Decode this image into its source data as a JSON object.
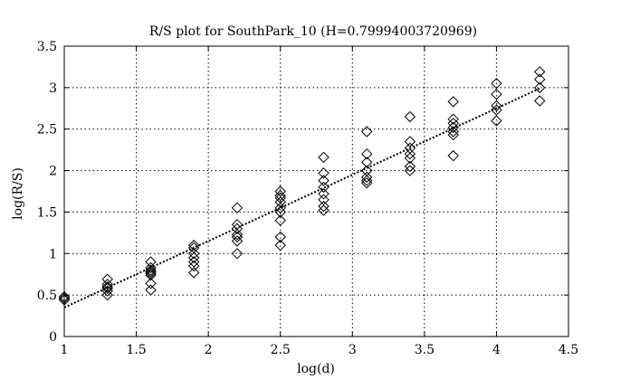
{
  "chart_data": {
    "type": "scatter",
    "title": "R/S plot for SouthPark_10 (H=0.79994003720969)",
    "xlabel": "log(d)",
    "ylabel": "log(R/S)",
    "xlim": [
      1,
      4.5
    ],
    "ylim": [
      0,
      3.5
    ],
    "xticks": [
      1,
      1.5,
      2,
      2.5,
      3,
      3.5,
      4,
      4.5
    ],
    "xtick_labels": [
      "1",
      "1.5",
      "2",
      "2.5",
      "3",
      "3.5",
      "4",
      "4.5"
    ],
    "yticks": [
      0,
      0.5,
      1,
      1.5,
      2,
      2.5,
      3,
      3.5
    ],
    "ytick_labels": [
      "0",
      "0.5",
      "1",
      "1.5",
      "2",
      "2.5",
      "3",
      "3.5"
    ],
    "grid": true,
    "marker": "diamond",
    "points": [
      [
        1.0,
        0.44
      ],
      [
        1.0,
        0.46
      ],
      [
        1.0,
        0.48
      ],
      [
        1.3,
        0.5
      ],
      [
        1.3,
        0.55
      ],
      [
        1.3,
        0.58
      ],
      [
        1.3,
        0.6
      ],
      [
        1.3,
        0.63
      ],
      [
        1.3,
        0.69
      ],
      [
        1.6,
        0.56
      ],
      [
        1.6,
        0.64
      ],
      [
        1.6,
        0.74
      ],
      [
        1.6,
        0.76
      ],
      [
        1.6,
        0.78
      ],
      [
        1.6,
        0.8
      ],
      [
        1.6,
        0.83
      ],
      [
        1.6,
        0.9
      ],
      [
        1.9,
        0.77
      ],
      [
        1.9,
        0.85
      ],
      [
        1.9,
        0.9
      ],
      [
        1.9,
        0.95
      ],
      [
        1.9,
        1.0
      ],
      [
        1.9,
        1.07
      ],
      [
        1.9,
        1.1
      ],
      [
        2.2,
        1.0
      ],
      [
        2.2,
        1.15
      ],
      [
        2.2,
        1.2
      ],
      [
        2.2,
        1.23
      ],
      [
        2.2,
        1.3
      ],
      [
        2.2,
        1.35
      ],
      [
        2.2,
        1.55
      ],
      [
        2.5,
        1.1
      ],
      [
        2.5,
        1.2
      ],
      [
        2.5,
        1.4
      ],
      [
        2.5,
        1.5
      ],
      [
        2.5,
        1.55
      ],
      [
        2.5,
        1.62
      ],
      [
        2.5,
        1.67
      ],
      [
        2.5,
        1.7
      ],
      [
        2.5,
        1.75
      ],
      [
        2.8,
        1.52
      ],
      [
        2.8,
        1.57
      ],
      [
        2.8,
        1.65
      ],
      [
        2.8,
        1.72
      ],
      [
        2.8,
        1.8
      ],
      [
        2.8,
        1.88
      ],
      [
        2.8,
        1.97
      ],
      [
        2.8,
        2.16
      ],
      [
        3.1,
        1.85
      ],
      [
        3.1,
        1.88
      ],
      [
        3.1,
        1.92
      ],
      [
        3.1,
        2.0
      ],
      [
        3.1,
        2.1
      ],
      [
        3.1,
        2.2
      ],
      [
        3.1,
        2.47
      ],
      [
        3.4,
        2.0
      ],
      [
        3.4,
        2.05
      ],
      [
        3.4,
        2.15
      ],
      [
        3.4,
        2.2
      ],
      [
        3.4,
        2.27
      ],
      [
        3.4,
        2.35
      ],
      [
        3.4,
        2.65
      ],
      [
        3.7,
        2.18
      ],
      [
        3.7,
        2.43
      ],
      [
        3.7,
        2.47
      ],
      [
        3.7,
        2.52
      ],
      [
        3.7,
        2.57
      ],
      [
        3.7,
        2.62
      ],
      [
        3.7,
        2.83
      ],
      [
        4.0,
        2.6
      ],
      [
        4.0,
        2.73
      ],
      [
        4.0,
        2.78
      ],
      [
        4.0,
        2.92
      ],
      [
        4.0,
        3.05
      ],
      [
        4.3,
        2.84
      ],
      [
        4.3,
        3.0
      ],
      [
        4.3,
        3.1
      ],
      [
        4.3,
        3.19
      ]
    ],
    "fit_line": {
      "slope": 0.79994003720969,
      "points": [
        [
          1.0,
          0.35
        ],
        [
          4.3,
          2.99
        ]
      ]
    }
  }
}
